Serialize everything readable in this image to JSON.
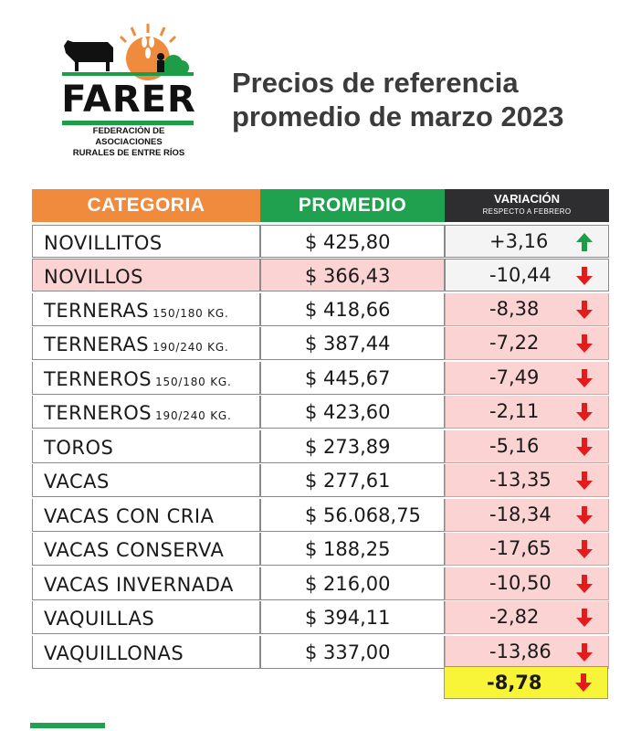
{
  "logo": {
    "word": "FARER",
    "subtitle_line1": "FEDERACIÓN DE ASOCIACIONES",
    "subtitle_line2": "RURALES DE ENTRE RÍOS"
  },
  "title_line1": "Precios de referencia",
  "title_line2": "promedio de marzo 2023",
  "table": {
    "headers": {
      "categoria": "CATEGORIA",
      "promedio": "PROMEDIO",
      "variacion": "VARIACIÓN",
      "variacion_sub": "RESPECTO A FEBRERO"
    },
    "rows": [
      {
        "cat": "NOVILLITOS",
        "sub": "",
        "prom": "$ 425,80",
        "var": "+3,16",
        "dir": "up"
      },
      {
        "cat": "NOVILLOS",
        "sub": "",
        "prom": "$ 366,43",
        "var": "-10,44",
        "dir": "down"
      },
      {
        "cat": "TERNERAS",
        "sub": "150/180 KG.",
        "prom": "$ 418,66",
        "var": "-8,38",
        "dir": "down"
      },
      {
        "cat": "TERNERAS",
        "sub": "190/240 KG.",
        "prom": "$ 387,44",
        "var": "-7,22",
        "dir": "down"
      },
      {
        "cat": "TERNEROS",
        "sub": "150/180 KG.",
        "prom": "$ 445,67",
        "var": "-7,49",
        "dir": "down"
      },
      {
        "cat": "TERNEROS",
        "sub": "190/240 KG.",
        "prom": "$ 423,60",
        "var": "-2,11",
        "dir": "down"
      },
      {
        "cat": "TOROS",
        "sub": "",
        "prom": "$ 273,89",
        "var": "-5,16",
        "dir": "down"
      },
      {
        "cat": "VACAS",
        "sub": "",
        "prom": "$ 277,61",
        "var": "-13,35",
        "dir": "down"
      },
      {
        "cat": "VACAS CON CRIA",
        "sub": "",
        "prom": "$ 56.068,75",
        "var": "-18,34",
        "dir": "down"
      },
      {
        "cat": "VACAS CONSERVA",
        "sub": "",
        "prom": "$ 188,25",
        "var": "-17,65",
        "dir": "down"
      },
      {
        "cat": "VACAS INVERNADA",
        "sub": "",
        "prom": "$ 216,00",
        "var": "-10,50",
        "dir": "down"
      },
      {
        "cat": "VAQUILLAS",
        "sub": "",
        "prom": "$ 394,11",
        "var": "-2,82",
        "dir": "down"
      },
      {
        "cat": "VAQUILLONAS",
        "sub": "",
        "prom": "$ 337,00",
        "var": "-13,86",
        "dir": "down"
      }
    ],
    "total": {
      "var": "-8,78",
      "dir": "down"
    }
  },
  "colors": {
    "orange": "#f08a3c",
    "green": "#1fa150",
    "dark": "#2e2e30",
    "pink": "#fbd3d3",
    "yellow": "#f8f437",
    "arrow_up": "#1f9d46",
    "arrow_down": "#e31b1b"
  }
}
